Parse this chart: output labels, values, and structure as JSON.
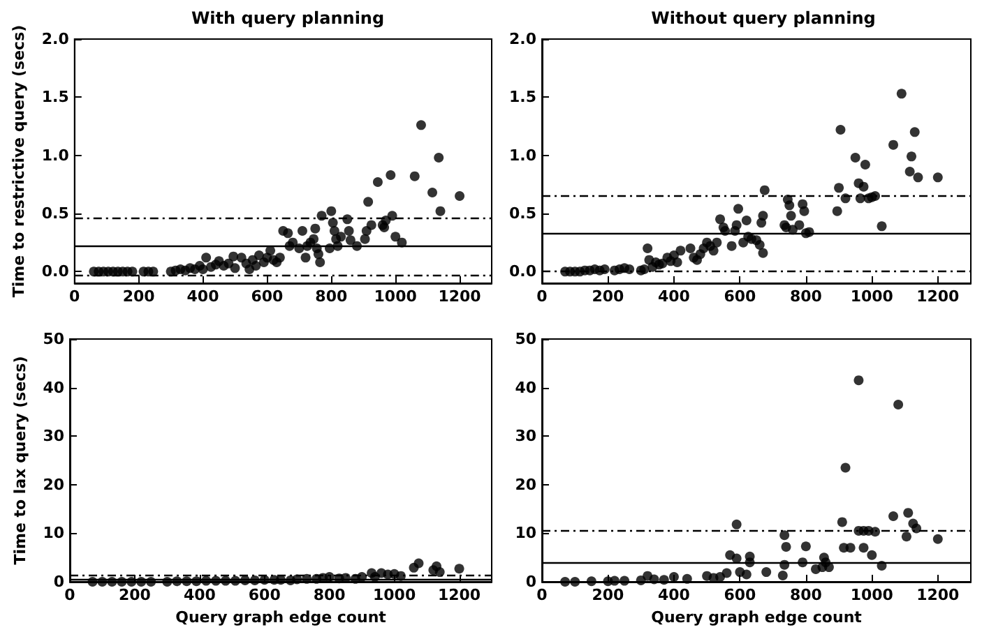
{
  "chart_data": [
    {
      "type": "scatter",
      "title": "With query planning",
      "ylabel": "Time to restrictive query (secs)",
      "marker": "circle",
      "grid": false,
      "xlim": [
        0,
        1300
      ],
      "xticks": [
        0,
        200,
        400,
        600,
        800,
        1000,
        1200
      ],
      "ylim": [
        -0.1,
        2.0
      ],
      "yticks": [
        {
          "value": 0,
          "label": "0.0"
        },
        0.5,
        {
          "value": 1,
          "label": "1.0"
        },
        1.5,
        {
          "value": 2,
          "label": "2.0"
        }
      ],
      "ref_lines": [
        {
          "axis": "y",
          "value": 0.22,
          "label": null,
          "color": "#000000",
          "line_style": "solid"
        },
        {
          "axis": "y",
          "value": 0.46,
          "label": null,
          "color": "#000000",
          "line_style": "dashed"
        },
        {
          "axis": "y",
          "value": -0.03,
          "label": null,
          "color": "#000000",
          "line_style": "dashed"
        }
      ],
      "series": [
        {
          "color": "#000000",
          "x": [
            60,
            75,
            90,
            105,
            120,
            135,
            150,
            165,
            180,
            215,
            230,
            245,
            300,
            315,
            330,
            345,
            360,
            375,
            390,
            400,
            410,
            425,
            440,
            450,
            465,
            480,
            495,
            500,
            520,
            535,
            545,
            555,
            565,
            575,
            590,
            600,
            610,
            620,
            630,
            640,
            650,
            665,
            670,
            680,
            700,
            710,
            720,
            725,
            735,
            745,
            750,
            755,
            760,
            765,
            770,
            795,
            800,
            805,
            810,
            815,
            820,
            830,
            850,
            855,
            860,
            880,
            905,
            910,
            915,
            925,
            945,
            960,
            965,
            970,
            985,
            990,
            1000,
            1020,
            1060,
            1080,
            1115,
            1135,
            1140,
            1200
          ],
          "values": [
            0,
            0,
            0,
            0,
            0,
            0,
            0,
            0,
            0,
            0,
            0,
            0,
            0,
            0.01,
            0.02,
            0.01,
            0.03,
            0.02,
            0.05,
            0.02,
            0.12,
            0.04,
            0.06,
            0.09,
            0.05,
            0.07,
            0.13,
            0.03,
            0.12,
            0.07,
            0.02,
            0.1,
            0.05,
            0.14,
            0.08,
            0.12,
            0.18,
            0.1,
            0.08,
            0.12,
            0.35,
            0.33,
            0.22,
            0.25,
            0.2,
            0.35,
            0.12,
            0.22,
            0.25,
            0.28,
            0.37,
            0.2,
            0.15,
            0.08,
            0.48,
            0.2,
            0.52,
            0.42,
            0.35,
            0.28,
            0.22,
            0.3,
            0.45,
            0.35,
            0.27,
            0.22,
            0.28,
            0.35,
            0.6,
            0.4,
            0.77,
            0.4,
            0.38,
            0.44,
            0.83,
            0.48,
            0.3,
            0.25,
            0.82,
            1.26,
            0.68,
            0.98,
            0.52,
            0.65
          ]
        }
      ]
    },
    {
      "type": "scatter",
      "title": "Without query planning",
      "marker": "circle",
      "grid": false,
      "xlim": [
        0,
        1300
      ],
      "xticks": [
        0,
        200,
        400,
        600,
        800,
        1000,
        1200
      ],
      "ylim": [
        -0.1,
        2.0
      ],
      "yticks": [
        {
          "value": 0,
          "label": "0.0"
        },
        0.5,
        {
          "value": 1,
          "label": "1.0"
        },
        1.5,
        {
          "value": 2,
          "label": "2.0"
        }
      ],
      "ref_lines": [
        {
          "axis": "y",
          "value": 0.33,
          "label": null,
          "color": "#000000",
          "line_style": "solid"
        },
        {
          "axis": "y",
          "value": 0.65,
          "label": null,
          "color": "#000000",
          "line_style": "dashed"
        },
        {
          "axis": "y",
          "value": 0.0,
          "label": null,
          "color": "#000000",
          "line_style": "dashed"
        }
      ],
      "series": [
        {
          "color": "#000000",
          "x": [
            70,
            85,
            100,
            115,
            130,
            145,
            160,
            175,
            190,
            220,
            235,
            250,
            265,
            300,
            310,
            320,
            325,
            335,
            345,
            355,
            365,
            380,
            390,
            400,
            410,
            420,
            450,
            460,
            470,
            480,
            490,
            500,
            510,
            520,
            530,
            540,
            550,
            555,
            575,
            585,
            590,
            595,
            610,
            620,
            625,
            635,
            650,
            660,
            670,
            665,
            670,
            675,
            735,
            740,
            745,
            750,
            755,
            760,
            780,
            790,
            795,
            800,
            810,
            895,
            900,
            905,
            920,
            950,
            960,
            965,
            975,
            980,
            990,
            1000,
            1010,
            1030,
            1065,
            1090,
            1115,
            1120,
            1130,
            1140,
            1200
          ],
          "values": [
            0,
            0,
            0,
            0,
            0.01,
            0.01,
            0.02,
            0.01,
            0.02,
            0.01,
            0.02,
            0.03,
            0.02,
            0.01,
            0.02,
            0.2,
            0.1,
            0.04,
            0.08,
            0.06,
            0.07,
            0.12,
            0.09,
            0.14,
            0.08,
            0.18,
            0.2,
            0.12,
            0.1,
            0.15,
            0.2,
            0.25,
            0.22,
            0.18,
            0.25,
            0.45,
            0.38,
            0.35,
            0.22,
            0.35,
            0.4,
            0.54,
            0.25,
            0.44,
            0.3,
            0.28,
            0.27,
            0.23,
            0.16,
            0.42,
            0.48,
            0.7,
            0.4,
            0.38,
            0.62,
            0.57,
            0.48,
            0.36,
            0.4,
            0.58,
            0.52,
            0.33,
            0.34,
            0.52,
            0.72,
            1.22,
            0.63,
            0.98,
            0.76,
            0.63,
            0.73,
            0.92,
            0.63,
            0.64,
            0.65,
            0.39,
            1.09,
            1.53,
            0.86,
            0.99,
            1.2,
            0.81,
            0.81
          ]
        }
      ]
    },
    {
      "type": "scatter",
      "ylabel": "Time to lax query (secs)",
      "xlabel": "Query graph edge count",
      "marker": "circle",
      "grid": false,
      "xlim": [
        0,
        1300
      ],
      "xticks": [
        0,
        200,
        400,
        600,
        800,
        1000,
        1200
      ],
      "ylim": [
        0,
        50
      ],
      "yticks": [
        0,
        10,
        20,
        30,
        40,
        50
      ],
      "ref_lines": [
        {
          "axis": "y",
          "value": 0.5,
          "label": null,
          "color": "#000000",
          "line_style": "solid"
        },
        {
          "axis": "y",
          "value": 1.3,
          "label": null,
          "color": "#000000",
          "line_style": "dashed"
        }
      ],
      "series": [
        {
          "color": "#000000",
          "x": [
            70,
            100,
            130,
            160,
            190,
            220,
            250,
            300,
            330,
            360,
            390,
            420,
            450,
            480,
            510,
            540,
            570,
            600,
            630,
            650,
            680,
            700,
            730,
            760,
            780,
            800,
            830,
            850,
            880,
            900,
            930,
            940,
            960,
            980,
            1000,
            1020,
            1060,
            1075,
            1120,
            1130,
            1140,
            1200
          ],
          "values": [
            0,
            0,
            0,
            0,
            0,
            0,
            0,
            0,
            0.1,
            0.1,
            0.1,
            0.2,
            0.2,
            0.2,
            0.2,
            0.3,
            0.3,
            0.4,
            0.4,
            0.4,
            0.3,
            0.5,
            0.6,
            0.6,
            0.8,
            1.0,
            0.7,
            0.8,
            0.6,
            1.0,
            1.8,
            1.0,
            1.8,
            1.5,
            1.6,
            1.2,
            2.9,
            3.8,
            2.4,
            3.2,
            2.0,
            2.7
          ]
        }
      ]
    },
    {
      "type": "scatter",
      "xlabel": "Query graph edge count",
      "marker": "circle",
      "grid": false,
      "xlim": [
        0,
        1300
      ],
      "xticks": [
        0,
        200,
        400,
        600,
        800,
        1000,
        1200
      ],
      "ylim": [
        0,
        50
      ],
      "yticks": [
        0,
        10,
        20,
        30,
        40,
        50
      ],
      "ref_lines": [
        {
          "axis": "y",
          "value": 4,
          "label": null,
          "color": "#000000",
          "line_style": "solid"
        },
        {
          "axis": "y",
          "value": 10.5,
          "label": null,
          "color": "#000000",
          "line_style": "dashed"
        }
      ],
      "series": [
        {
          "color": "#000000",
          "x": [
            70,
            100,
            150,
            200,
            220,
            250,
            300,
            320,
            340,
            370,
            400,
            440,
            500,
            520,
            540,
            560,
            570,
            590,
            590,
            600,
            620,
            630,
            630,
            680,
            730,
            735,
            735,
            740,
            790,
            800,
            830,
            850,
            855,
            860,
            870,
            910,
            915,
            920,
            935,
            960,
            960,
            975,
            975,
            990,
            1000,
            1010,
            1030,
            1065,
            1080,
            1105,
            1110,
            1125,
            1135,
            1200
          ],
          "values": [
            0,
            0,
            0.1,
            0.1,
            0.2,
            0.2,
            0.3,
            1.2,
            0.5,
            0.4,
            1.0,
            0.6,
            1.2,
            0.8,
            1.0,
            1.8,
            5.5,
            11.8,
            4.8,
            2.0,
            1.5,
            5.2,
            4.0,
            2.0,
            1.3,
            9.6,
            3.5,
            7.2,
            4.0,
            7.3,
            2.6,
            3.0,
            5.0,
            4.0,
            3.0,
            12.3,
            7.0,
            23.5,
            7.0,
            41.5,
            10.5,
            10.5,
            7.0,
            10.5,
            5.5,
            10.3,
            3.3,
            13.5,
            36.5,
            9.3,
            14.2,
            12.0,
            11.0,
            8.8
          ]
        }
      ]
    }
  ]
}
